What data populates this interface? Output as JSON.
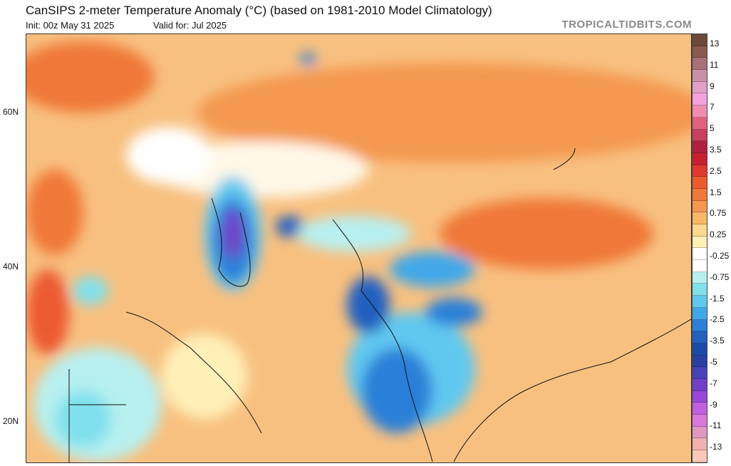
{
  "header": {
    "title": "CanSIPS 2-meter Temperature Anomaly (°C) (based on 1981-2010 Model Climatology)",
    "init": "Init: 00z May 31 2025",
    "valid": "Valid for: Jul 2025",
    "brand": "TROPICALTIDBITS.COM"
  },
  "lat_labels": [
    "60N",
    "40N",
    "20N"
  ],
  "colorbar": {
    "ticks": [
      "13",
      "11",
      "9",
      "7",
      "5",
      "3.5",
      "2.5",
      "1.5",
      "0.75",
      "0.25",
      "-0.25",
      "-0.75",
      "-1.5",
      "-2.5",
      "-3.5",
      "-5",
      "-7",
      "-9",
      "-11",
      "-13"
    ],
    "colors": [
      "#6b4a3a",
      "#8a5a50",
      "#a8707a",
      "#c890a8",
      "#e0a0c8",
      "#f4a0dc",
      "#f08cb0",
      "#e06080",
      "#c84060",
      "#b02040",
      "#c82030",
      "#e03a30",
      "#ec5a30",
      "#f07838",
      "#f49850",
      "#f8b868",
      "#fcd890",
      "#fff0b8",
      "#ffffff",
      "#ffffff",
      "#b8f0f0",
      "#80e0ec",
      "#60c8f0",
      "#40a8e8",
      "#2c80d8",
      "#2460c0",
      "#1c4aa8",
      "#2840a0",
      "#4840b8",
      "#7040c8",
      "#9848d8",
      "#c060e0",
      "#d878d8",
      "#e098c0",
      "#f0b0b0",
      "#f8c8b8"
    ]
  }
}
